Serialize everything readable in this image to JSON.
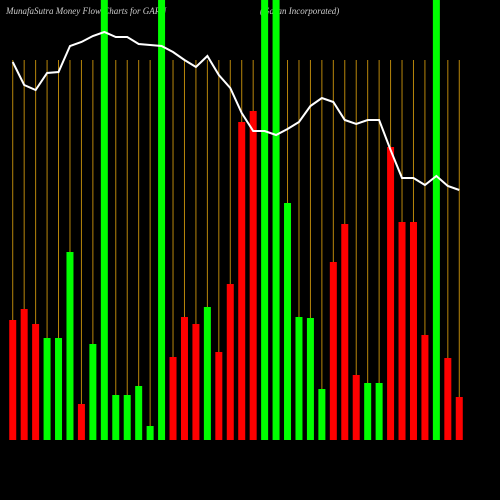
{
  "chart_data": {
    "type": "bar",
    "title": "MunafaSutra  Money Flow  Charts for GARN",
    "subtitle": "(Garan Incorporated)",
    "values": [
      120,
      131,
      116,
      102,
      102,
      188,
      36,
      96,
      440,
      45,
      45,
      54,
      14,
      440,
      83,
      123,
      116,
      133,
      88,
      156,
      318,
      329,
      440,
      440,
      237,
      123,
      122,
      51,
      178,
      216,
      65,
      57,
      57,
      293,
      218,
      218,
      105,
      440,
      82,
      43
    ],
    "colors": [
      "#ff0000",
      "#ff0000",
      "#ff0000",
      "#00ff00",
      "#00ff00",
      "#00ff00",
      "#ff0000",
      "#00ff00",
      "#00ff00",
      "#00ff00",
      "#00ff00",
      "#00ff00",
      "#00ff00",
      "#00ff00",
      "#ff0000",
      "#ff0000",
      "#ff0000",
      "#00ff00",
      "#ff0000",
      "#ff0000",
      "#ff0000",
      "#ff0000",
      "#00ff00",
      "#00ff00",
      "#00ff00",
      "#00ff00",
      "#00ff00",
      "#00ff00",
      "#ff0000",
      "#ff0000",
      "#ff0000",
      "#00ff00",
      "#00ff00",
      "#ff0000",
      "#ff0000",
      "#ff0000",
      "#ff0000",
      "#00ff00",
      "#ff0000",
      "#ff0000"
    ],
    "ylim": [
      0,
      440
    ],
    "line": {
      "color": "#ffffff",
      "axis": "y2",
      "values": [
        438,
        415,
        410,
        427,
        428,
        454,
        458,
        464,
        468,
        463,
        463,
        456,
        455,
        454,
        448,
        440,
        433,
        444,
        425,
        412,
        387,
        369,
        369,
        365,
        371,
        378,
        394,
        402,
        398,
        380,
        376,
        380,
        380,
        350,
        322,
        322,
        315,
        324,
        314,
        310
      ]
    },
    "y2lim": [
      0,
      500
    ],
    "gridline_color": "#b8860b"
  }
}
